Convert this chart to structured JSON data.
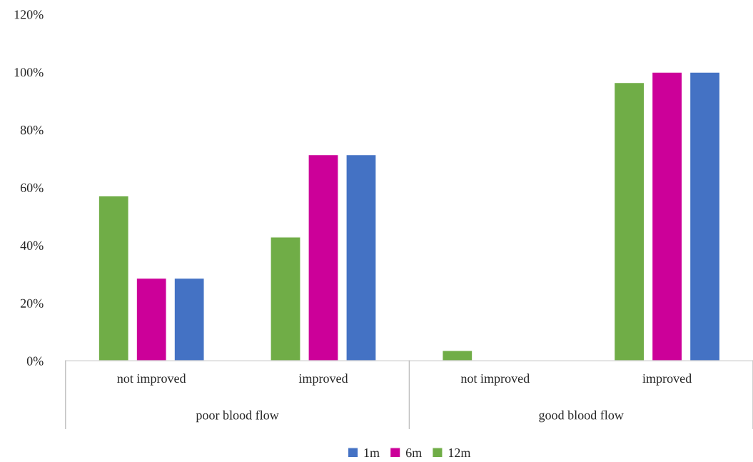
{
  "chart_data": {
    "type": "bar",
    "categories": [
      "not improved",
      "improved",
      "not improved",
      "improved"
    ],
    "series": [
      {
        "name": "12m",
        "color": "#70ad47",
        "values": [
          57.1,
          42.9,
          3.6,
          96.4
        ]
      },
      {
        "name": "6m",
        "color": "#cc0099",
        "values": [
          28.6,
          71.4,
          null,
          100
        ]
      },
      {
        "name": "1m",
        "color": "#4472c4",
        "values": [
          28.6,
          71.4,
          null,
          100
        ]
      }
    ],
    "annotations": [
      "poor blood flow",
      "good blood flow"
    ],
    "ylim": [
      0,
      120
    ],
    "yticks": [
      {
        "value": 0,
        "label": "0%"
      },
      {
        "value": 20,
        "label": "20%"
      },
      {
        "value": 40,
        "label": "40%"
      },
      {
        "value": 60,
        "label": "60%"
      },
      {
        "value": 80,
        "label": "80%"
      },
      {
        "value": 100,
        "label": "100%"
      },
      {
        "value": 120,
        "label": "120%"
      }
    ],
    "grid": false,
    "legend": "bottom"
  }
}
